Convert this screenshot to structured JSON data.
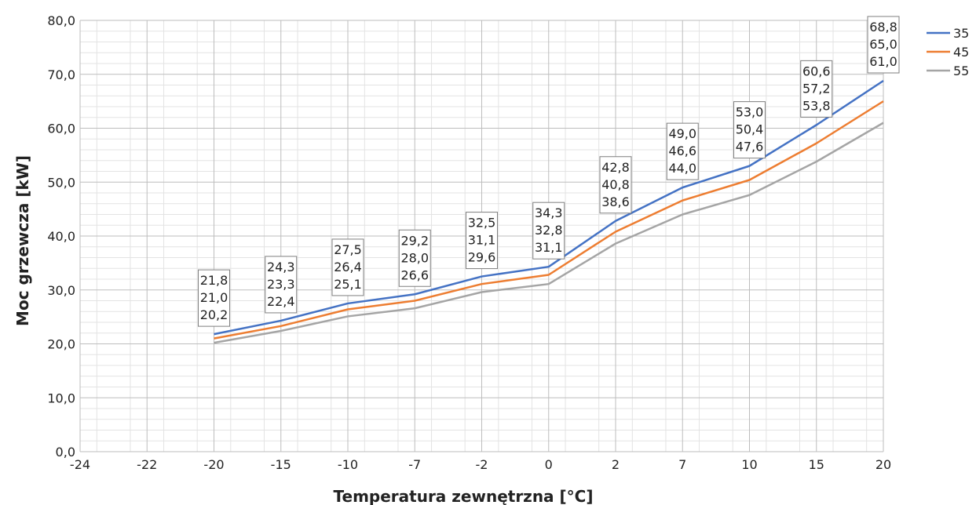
{
  "chart_data": {
    "type": "line",
    "title": "",
    "xlabel": "Temperatura zewnętrzna [°C]",
    "ylabel": "Moc grzewcza [kW]",
    "categories": [
      "-24",
      "-22",
      "-20",
      "-15",
      "-10",
      "-7",
      "-2",
      "0",
      "2",
      "7",
      "10",
      "15",
      "20"
    ],
    "y_ticks": [
      "0,0",
      "10,0",
      "20,0",
      "30,0",
      "40,0",
      "50,0",
      "60,0",
      "70,0",
      "80,0"
    ],
    "ylim": [
      0,
      80
    ],
    "grid": true,
    "legend_position": "top-right",
    "series": [
      {
        "name": "35",
        "color": "#4472c4",
        "values": [
          null,
          null,
          21.8,
          24.3,
          27.5,
          29.2,
          32.5,
          34.3,
          42.8,
          49.0,
          53.0,
          60.6,
          68.8
        ]
      },
      {
        "name": "45",
        "color": "#ed7d31",
        "values": [
          null,
          null,
          21.0,
          23.3,
          26.4,
          28.0,
          31.1,
          32.8,
          40.8,
          46.6,
          50.4,
          57.2,
          65.0
        ]
      },
      {
        "name": "55",
        "color": "#a5a5a5",
        "values": [
          null,
          null,
          20.2,
          22.4,
          25.1,
          26.6,
          29.6,
          31.1,
          38.6,
          44.0,
          47.6,
          53.8,
          61.0
        ]
      }
    ],
    "data_labels": [
      {
        "category": "-20",
        "lines": [
          "21,8",
          "21,0",
          "20,2"
        ]
      },
      {
        "category": "-15",
        "lines": [
          "24,3",
          "23,3",
          "22,4"
        ]
      },
      {
        "category": "-10",
        "lines": [
          "27,5",
          "26,4",
          "25,1"
        ]
      },
      {
        "category": "-7",
        "lines": [
          "29,2",
          "28,0",
          "26,6"
        ]
      },
      {
        "category": "-2",
        "lines": [
          "32,5",
          "31,1",
          "29,6"
        ]
      },
      {
        "category": "0",
        "lines": [
          "34,3",
          "32,8",
          "31,1"
        ]
      },
      {
        "category": "2",
        "lines": [
          "42,8",
          "40,8",
          "38,6"
        ]
      },
      {
        "category": "7",
        "lines": [
          "49,0",
          "46,6",
          "44,0"
        ]
      },
      {
        "category": "10",
        "lines": [
          "53,0",
          "50,4",
          "47,6"
        ]
      },
      {
        "category": "15",
        "lines": [
          "60,6",
          "57,2",
          "53,8"
        ]
      },
      {
        "category": "20",
        "lines": [
          "68,8",
          "65,0",
          "61,0"
        ]
      }
    ]
  }
}
